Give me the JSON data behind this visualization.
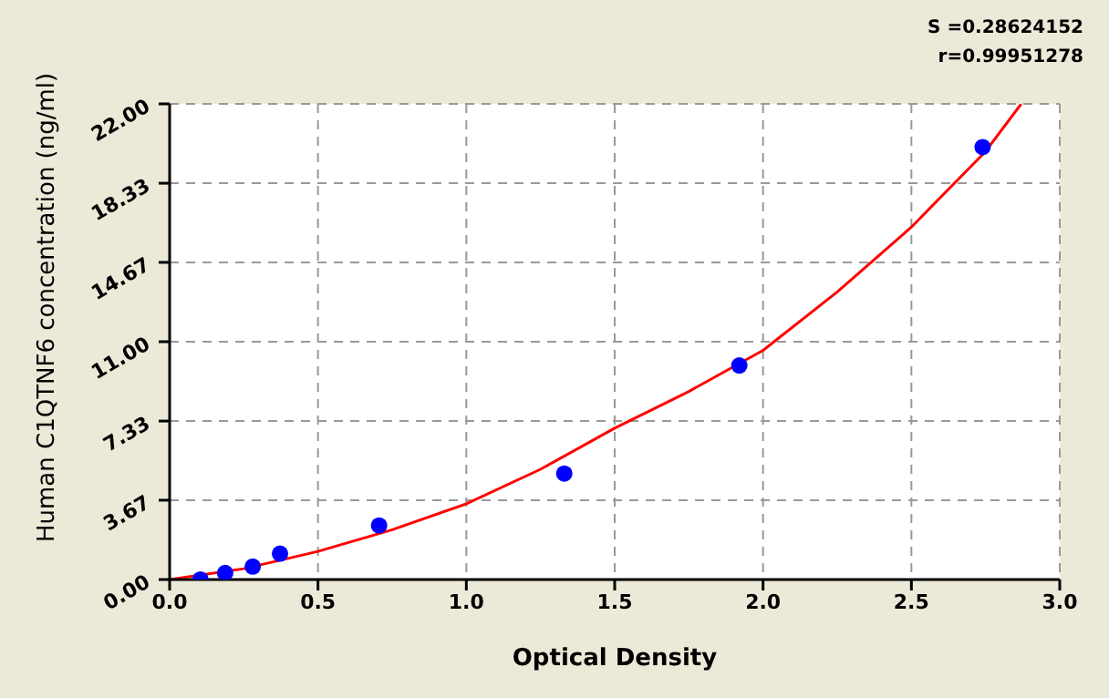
{
  "chart_data": {
    "type": "scatter",
    "xlabel": "Optical Density",
    "ylabel": "Human C1QTNF6 concentration (ng/ml)",
    "annotations": [
      "S =0.28624152",
      "r=0.99951278"
    ],
    "series": [
      {
        "color": "#0000ff",
        "marker": "circle",
        "x": [
          0.104,
          0.187,
          0.28,
          0.372,
          0.706,
          1.33,
          1.92,
          2.74
        ],
        "values": [
          0,
          0.3,
          0.6,
          1.2,
          2.5,
          4.9,
          9.9,
          20
        ]
      },
      {
        "type": "line",
        "color": "#ff0000",
        "marker": "none",
        "line_style": "solid",
        "x": [
          0,
          0.25,
          0.5,
          0.75,
          1.0,
          1.25,
          1.5,
          1.75,
          2.0,
          2.25,
          2.5,
          2.75,
          2.87
        ],
        "values": [
          0,
          0.5,
          1.3,
          2.3,
          3.5,
          5.1,
          7,
          8.7,
          10.6,
          13.3,
          16.3,
          19.8,
          22
        ]
      }
    ],
    "xlim": [
      0,
      3
    ],
    "xticks": [
      {
        "value": 0,
        "label": "0.0"
      },
      {
        "value": 0.5,
        "label": "0.5"
      },
      {
        "value": 1,
        "label": "1.0"
      },
      {
        "value": 1.5,
        "label": "1.5"
      },
      {
        "value": 2,
        "label": "2.0"
      },
      {
        "value": 2.5,
        "label": "2.5"
      },
      {
        "value": 3,
        "label": "3.0"
      }
    ],
    "ylim": [
      0,
      22
    ],
    "yticks": [
      {
        "value": 0,
        "label": "0.00"
      },
      {
        "value": 3.67,
        "label": "3.67"
      },
      {
        "value": 7.33,
        "label": "7.33"
      },
      {
        "value": 11,
        "label": "11.00"
      },
      {
        "value": 14.67,
        "label": "14.67"
      },
      {
        "value": 18.33,
        "label": "18.33"
      },
      {
        "value": 22,
        "label": "22.00"
      }
    ],
    "grid": true
  }
}
